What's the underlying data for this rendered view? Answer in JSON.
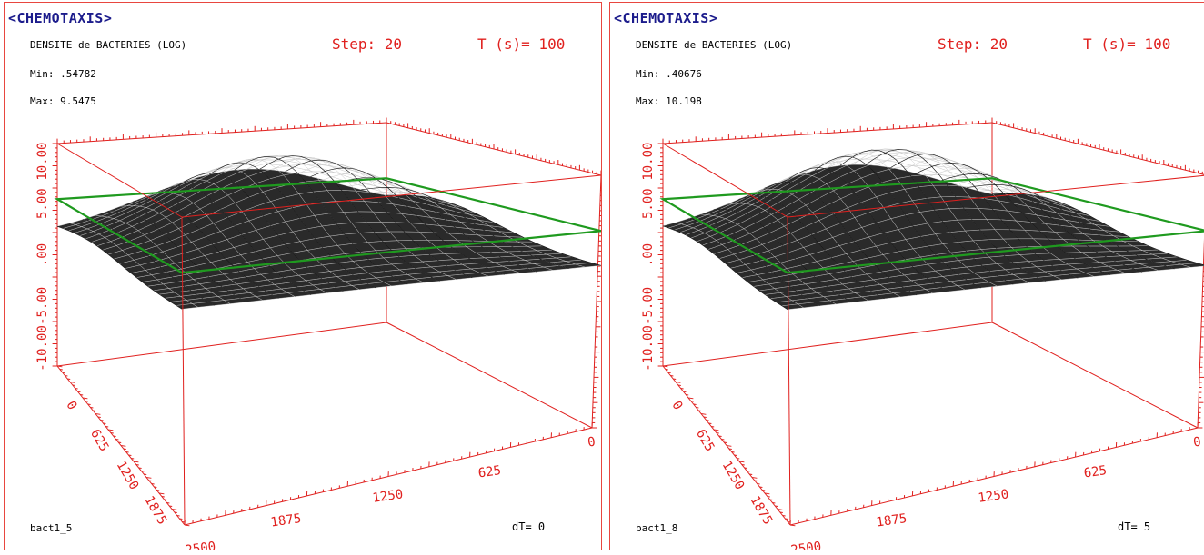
{
  "panels": [
    {
      "app_title": "<CHEMOTAXIS>",
      "subtitle": "DENSITE de BACTERIES (LOG)",
      "step_label": "Step: 20",
      "time_label": "T (s)= 100",
      "min_label": "Min: .54782",
      "max_label": "Max: 9.5475",
      "filename": "bact1_5",
      "dt_label": "dT= 0"
    },
    {
      "app_title": "<CHEMOTAXIS>",
      "subtitle": "DENSITE de BACTERIES (LOG)",
      "step_label": "Step: 20",
      "time_label": "T (s)= 100",
      "min_label": "Min: .40676",
      "max_label": "Max: 10.198",
      "filename": "bact1_8",
      "dt_label": "dT= 5"
    }
  ],
  "colors": {
    "axes": "#e0201e",
    "title": "#1c1c8c",
    "plane": "#1f9a1f",
    "surface": "#111111",
    "border": "#e8463f"
  },
  "chart_data": [
    {
      "type": "surface3d",
      "title": "DENSITE de BACTERIES (LOG)",
      "z_ticks": [
        "10.00",
        "5.00",
        ".00",
        "-5.00",
        "-10.00"
      ],
      "zlim": [
        -10,
        10
      ],
      "x_ticks": [
        "0",
        "625",
        "1250",
        "1875",
        "2500"
      ],
      "xlim": [
        0,
        2500
      ],
      "y_ticks": [
        "0",
        "625",
        "1250",
        "1875",
        "2500"
      ],
      "ylim": [
        0,
        2500
      ],
      "z_min": 0.54782,
      "z_max": 9.5475,
      "reference_plane_z": 5.0
    },
    {
      "type": "surface3d",
      "title": "DENSITE de BACTERIES (LOG)",
      "z_ticks": [
        "10.00",
        "5.00",
        ".00",
        "-5.00",
        "-10.00"
      ],
      "zlim": [
        -10,
        10
      ],
      "x_ticks": [
        "0",
        "625",
        "1250",
        "1875",
        "2500"
      ],
      "xlim": [
        0,
        2500
      ],
      "y_ticks": [
        "0",
        "625",
        "1250",
        "1875",
        "2500"
      ],
      "ylim": [
        0,
        2500
      ],
      "z_min": 0.40676,
      "z_max": 10.198,
      "reference_plane_z": 5.0
    }
  ]
}
